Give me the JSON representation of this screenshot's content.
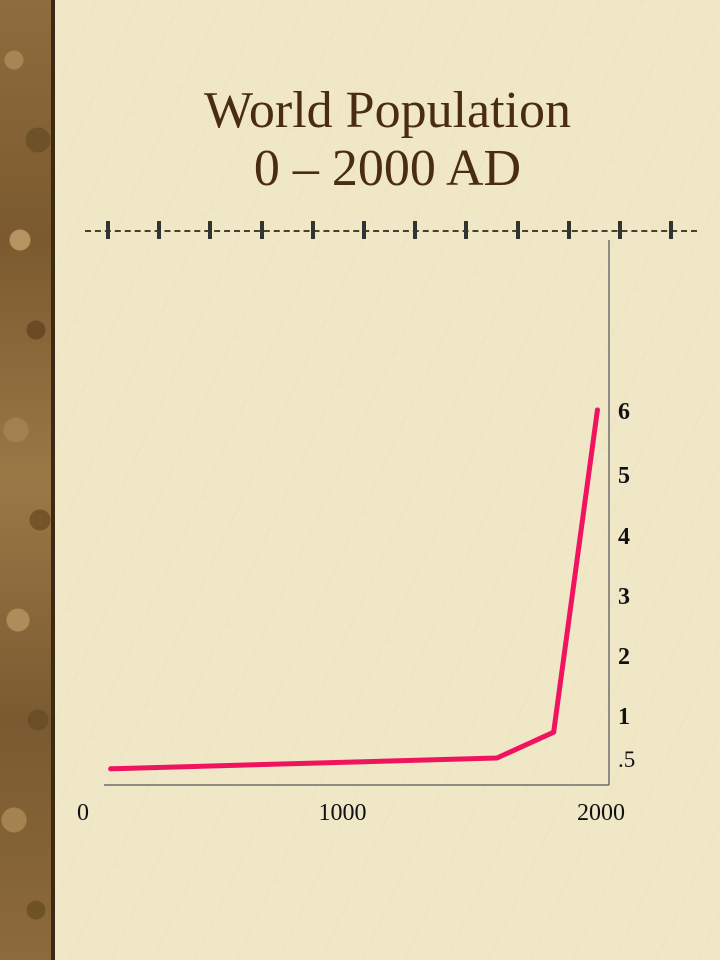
{
  "slide": {
    "title_line1": "World Population",
    "title_line2": "0 – 2000 AD"
  },
  "colors": {
    "line": "#f0145f",
    "title": "#4a2d10",
    "background": "#efe7c6",
    "axis": "#6e6e6e"
  },
  "chart_data": {
    "type": "line",
    "xlim": [
      0,
      2000
    ],
    "ylim": [
      0,
      6
    ],
    "x_ticks": [
      {
        "value": 0,
        "label": "0"
      },
      {
        "value": 1000,
        "label": "1000"
      },
      {
        "value": 2000,
        "label": "2000"
      }
    ],
    "y_ticks": [
      {
        "value": 0.5,
        "label": ".5"
      },
      {
        "value": 1,
        "label": "1"
      },
      {
        "value": 2,
        "label": "2"
      },
      {
        "value": 3,
        "label": "3"
      },
      {
        "value": 4,
        "label": "4"
      },
      {
        "value": 5,
        "label": "5"
      },
      {
        "value": 6,
        "label": "6"
      }
    ],
    "series": [
      {
        "x": [
          100,
          1600,
          1820,
          1990
        ],
        "y": [
          0.3,
          0.5,
          0.8,
          6
        ]
      }
    ],
    "grid": false,
    "legend": "none"
  }
}
